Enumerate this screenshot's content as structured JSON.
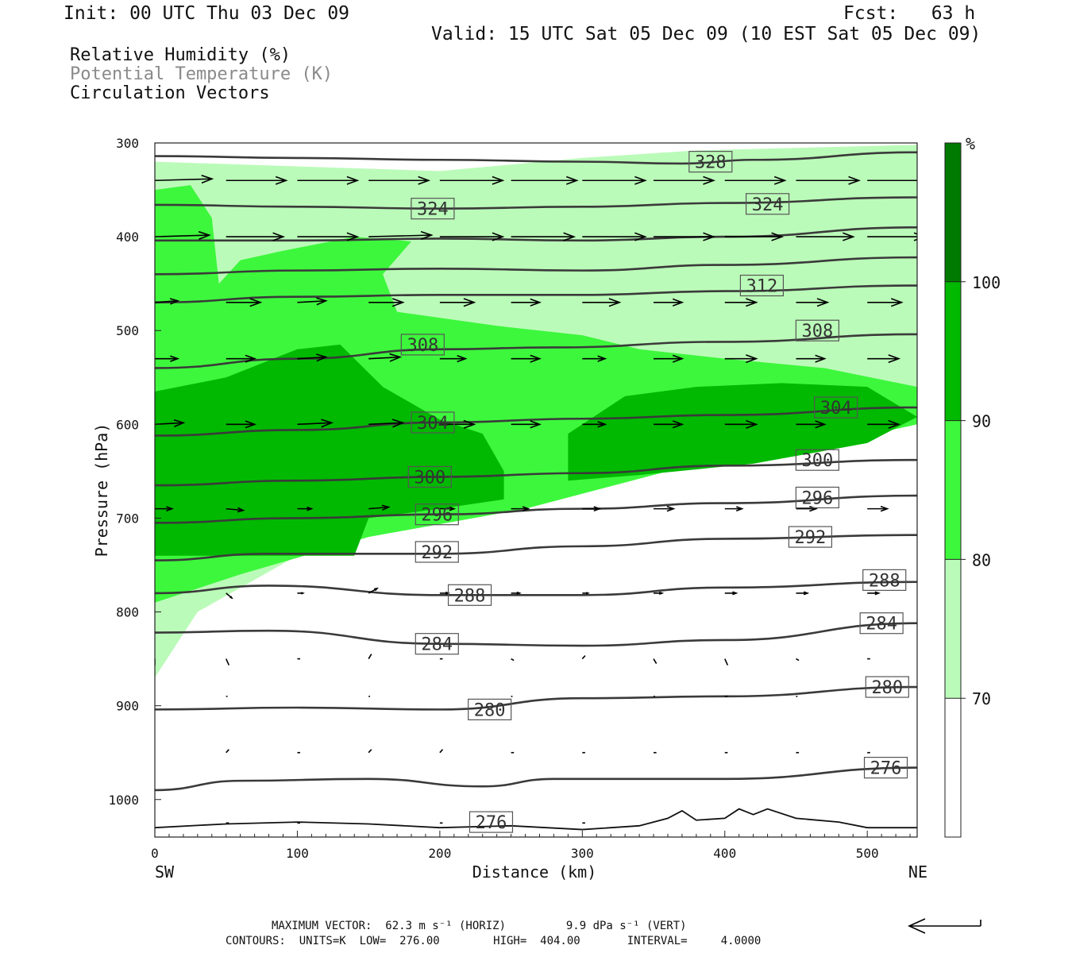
{
  "header": {
    "init": "Init: 00 UTC Thu 03 Dec 09",
    "fcst": "Fcst:   63 h",
    "valid": "Valid: 15 UTC Sat 05 Dec 09 (10 EST Sat 05 Dec 09)"
  },
  "fields": [
    {
      "label": "Relative Humidity (%)",
      "color": "#111111"
    },
    {
      "label": "Potential Temperature (K)",
      "color": "#8a8a8a"
    },
    {
      "label": "Circulation Vectors",
      "color": "#111111"
    }
  ],
  "chart_data": {
    "type": "heatmap",
    "description_kind": "vertical cross-section",
    "xlabel": "Distance (km)",
    "ylabel": "Pressure (hPa)",
    "x_ticks": [
      0,
      100,
      200,
      300,
      400,
      500
    ],
    "y_ticks": [
      300,
      400,
      500,
      600,
      700,
      800,
      900,
      1000
    ],
    "xlim": [
      0,
      535
    ],
    "ylim": [
      300,
      1040
    ],
    "y_inverted": true,
    "x_end_labels": {
      "left": "SW",
      "right": "NE"
    },
    "colorbar": {
      "unit": "%",
      "levels": [
        70,
        80,
        90,
        100
      ],
      "colors": [
        "#ffffff",
        "#bbfbb9",
        "#3df73c",
        "#00b900",
        "#007a00"
      ]
    },
    "theta_contours": [
      {
        "value": 328,
        "label": "328",
        "points": [
          [
            0,
            314
          ],
          [
            100,
            316
          ],
          [
            200,
            318
          ],
          [
            300,
            320
          ],
          [
            370,
            322
          ],
          [
            420,
            318
          ],
          [
            535,
            310
          ]
        ],
        "label_at": [
          390,
          320
        ]
      },
      {
        "value": 324,
        "label": "324",
        "points": [
          [
            0,
            366
          ],
          [
            100,
            368
          ],
          [
            200,
            370
          ],
          [
            300,
            368
          ],
          [
            400,
            364
          ],
          [
            535,
            358
          ]
        ],
        "label_at": [
          195,
          370
        ]
      },
      {
        "value": 324,
        "label": "324",
        "points": [],
        "label_at": [
          430,
          365
        ]
      },
      {
        "value": 320,
        "label": "",
        "points": [
          [
            0,
            404
          ],
          [
            100,
            404
          ],
          [
            200,
            402
          ],
          [
            300,
            404
          ],
          [
            400,
            400
          ],
          [
            535,
            390
          ]
        ],
        "label_at": null
      },
      {
        "value": 316,
        "label": "",
        "points": [
          [
            0,
            440
          ],
          [
            100,
            436
          ],
          [
            200,
            434
          ],
          [
            300,
            436
          ],
          [
            400,
            430
          ],
          [
            535,
            422
          ]
        ],
        "label_at": null
      },
      {
        "value": 312,
        "label": "312",
        "points": [
          [
            0,
            470
          ],
          [
            100,
            464
          ],
          [
            200,
            462
          ],
          [
            300,
            462
          ],
          [
            400,
            458
          ],
          [
            535,
            452
          ]
        ],
        "label_at": [
          426,
          452
        ]
      },
      {
        "value": 308,
        "label": "308",
        "points": [
          [
            0,
            540
          ],
          [
            100,
            530
          ],
          [
            200,
            520
          ],
          [
            280,
            518
          ],
          [
            400,
            512
          ],
          [
            535,
            504
          ]
        ],
        "label_at": [
          188,
          515
        ]
      },
      {
        "value": 308,
        "label": "308",
        "points": [],
        "label_at": [
          465,
          500
        ]
      },
      {
        "value": 304,
        "label": "304",
        "points": [
          [
            0,
            612
          ],
          [
            100,
            606
          ],
          [
            200,
            598
          ],
          [
            300,
            594
          ],
          [
            400,
            590
          ],
          [
            535,
            582
          ]
        ],
        "label_at": [
          195,
          598
        ]
      },
      {
        "value": 304,
        "label": "304",
        "points": [],
        "label_at": [
          478,
          582
        ]
      },
      {
        "value": 300,
        "label": "300",
        "points": [
          [
            0,
            665
          ],
          [
            100,
            660
          ],
          [
            200,
            656
          ],
          [
            300,
            652
          ],
          [
            400,
            644
          ],
          [
            535,
            638
          ]
        ],
        "label_at": [
          193,
          656
        ]
      },
      {
        "value": 300,
        "label": "300",
        "points": [],
        "label_at": [
          465,
          638
        ]
      },
      {
        "value": 296,
        "label": "296",
        "points": [
          [
            0,
            705
          ],
          [
            100,
            700
          ],
          [
            200,
            696
          ],
          [
            300,
            690
          ],
          [
            400,
            684
          ],
          [
            535,
            676
          ]
        ],
        "label_at": [
          198,
          696
        ]
      },
      {
        "value": 296,
        "label": "296",
        "points": [],
        "label_at": [
          465,
          678
        ]
      },
      {
        "value": 292,
        "label": "292",
        "points": [
          [
            0,
            745
          ],
          [
            80,
            738
          ],
          [
            200,
            738
          ],
          [
            300,
            730
          ],
          [
            400,
            722
          ],
          [
            535,
            718
          ]
        ],
        "label_at": [
          198,
          736
        ]
      },
      {
        "value": 292,
        "label": "292",
        "points": [],
        "label_at": [
          460,
          720
        ]
      },
      {
        "value": 288,
        "label": "288",
        "points": [
          [
            0,
            780
          ],
          [
            80,
            772
          ],
          [
            200,
            782
          ],
          [
            300,
            782
          ],
          [
            400,
            774
          ],
          [
            535,
            768
          ]
        ],
        "label_at": [
          221,
          782
        ]
      },
      {
        "value": 288,
        "label": "288",
        "points": [],
        "label_at": [
          512,
          766
        ]
      },
      {
        "value": 284,
        "label": "284",
        "points": [
          [
            0,
            822
          ],
          [
            80,
            820
          ],
          [
            200,
            834
          ],
          [
            300,
            836
          ],
          [
            400,
            830
          ],
          [
            535,
            812
          ]
        ],
        "label_at": [
          198,
          834
        ]
      },
      {
        "value": 284,
        "label": "284",
        "points": [],
        "label_at": [
          510,
          812
        ]
      },
      {
        "value": 280,
        "label": "280",
        "points": [
          [
            0,
            904
          ],
          [
            100,
            902
          ],
          [
            200,
            904
          ],
          [
            300,
            892
          ],
          [
            400,
            890
          ],
          [
            535,
            880
          ]
        ],
        "label_at": [
          235,
          904
        ]
      },
      {
        "value": 280,
        "label": "280",
        "points": [],
        "label_at": [
          514,
          880
        ]
      },
      {
        "value": 276,
        "label": "276",
        "points": [
          [
            0,
            990
          ],
          [
            60,
            980
          ],
          [
            150,
            978
          ],
          [
            230,
            986
          ],
          [
            280,
            978
          ],
          [
            400,
            978
          ],
          [
            535,
            966
          ]
        ],
        "label_at": [
          513,
          966
        ]
      },
      {
        "value": 276,
        "label": "276",
        "points": [],
        "label_at": [
          236,
          1024
        ]
      }
    ],
    "rh_regions": [
      {
        "rh_min": 70,
        "outline": [
          [
            0,
            320
          ],
          [
            200,
            330
          ],
          [
            300,
            316
          ],
          [
            380,
            308
          ],
          [
            535,
            302
          ],
          [
            535,
            592
          ],
          [
            440,
            612
          ],
          [
            360,
            640
          ],
          [
            300,
            664
          ],
          [
            200,
            700
          ],
          [
            100,
            740
          ],
          [
            30,
            800
          ],
          [
            0,
            870
          ]
        ]
      },
      {
        "rh_min": 80,
        "outline": [
          [
            0,
            350
          ],
          [
            25,
            345
          ],
          [
            40,
            380
          ],
          [
            45,
            450
          ],
          [
            60,
            425
          ],
          [
            90,
            415
          ],
          [
            140,
            400
          ],
          [
            180,
            405
          ],
          [
            160,
            440
          ],
          [
            170,
            480
          ],
          [
            240,
            495
          ],
          [
            300,
            505
          ],
          [
            340,
            520
          ],
          [
            400,
            530
          ],
          [
            470,
            540
          ],
          [
            535,
            560
          ],
          [
            535,
            600
          ],
          [
            460,
            625
          ],
          [
            360,
            650
          ],
          [
            260,
            690
          ],
          [
            150,
            720
          ],
          [
            60,
            760
          ],
          [
            0,
            790
          ]
        ]
      },
      {
        "rh_min": 90,
        "outline": [
          [
            0,
            565
          ],
          [
            50,
            550
          ],
          [
            100,
            520
          ],
          [
            130,
            515
          ],
          [
            160,
            560
          ],
          [
            200,
            595
          ],
          [
            230,
            610
          ],
          [
            245,
            650
          ],
          [
            245,
            680
          ],
          [
            200,
            690
          ],
          [
            150,
            700
          ],
          [
            140,
            740
          ],
          [
            0,
            740
          ]
        ]
      },
      {
        "rh_min": 90,
        "outline": [
          [
            290,
            610
          ],
          [
            330,
            570
          ],
          [
            380,
            560
          ],
          [
            440,
            556
          ],
          [
            500,
            560
          ],
          [
            535,
            592
          ],
          [
            500,
            620
          ],
          [
            420,
            642
          ],
          [
            340,
            654
          ],
          [
            290,
            660
          ]
        ]
      }
    ],
    "vectors": [
      {
        "p": 340,
        "x": [
          0,
          50,
          100,
          150,
          200,
          250,
          300,
          350,
          400,
          450,
          500
        ],
        "u": [
          40,
          42,
          42,
          42,
          44,
          46,
          44,
          42,
          42,
          44,
          44
        ],
        "w": [
          -1,
          0,
          0,
          0,
          0,
          0,
          0,
          0,
          0,
          0,
          0
        ]
      },
      {
        "p": 400,
        "x": [
          0,
          50,
          100,
          150,
          200,
          250,
          300,
          350,
          400,
          450,
          500
        ],
        "u": [
          38,
          40,
          42,
          44,
          44,
          44,
          44,
          42,
          40,
          40,
          40
        ],
        "w": [
          -1,
          0,
          0,
          -1,
          0,
          0,
          0,
          0,
          0,
          0,
          0
        ]
      },
      {
        "p": 470,
        "x": [
          0,
          50,
          100,
          150,
          200,
          250,
          300,
          350,
          400,
          450,
          500
        ],
        "u": [
          16,
          24,
          20,
          24,
          24,
          20,
          26,
          20,
          22,
          22,
          24
        ],
        "w": [
          -1,
          0,
          -1,
          0,
          0,
          0,
          0,
          0,
          0,
          0,
          0
        ]
      },
      {
        "p": 530,
        "x": [
          0,
          50,
          100,
          150,
          200,
          250,
          300,
          350,
          400,
          450,
          500
        ],
        "u": [
          16,
          20,
          20,
          22,
          18,
          20,
          16,
          20,
          22,
          20,
          22
        ],
        "w": [
          0,
          0,
          -1,
          -1,
          0,
          0,
          0,
          0,
          0,
          0,
          0
        ]
      },
      {
        "p": 600,
        "x": [
          0,
          50,
          100,
          150,
          200,
          250,
          300,
          350,
          400,
          450,
          500
        ],
        "u": [
          20,
          20,
          24,
          24,
          24,
          20,
          16,
          20,
          22,
          20,
          22
        ],
        "w": [
          -1,
          0,
          -1,
          -1,
          0,
          0,
          0,
          0,
          0,
          0,
          0
        ]
      },
      {
        "p": 690,
        "x": [
          0,
          50,
          100,
          150,
          200,
          250,
          300,
          350,
          400,
          450,
          500
        ],
        "u": [
          12,
          12,
          10,
          14,
          10,
          12,
          12,
          14,
          12,
          14,
          14
        ],
        "w": [
          0,
          1,
          0,
          -1,
          0,
          0,
          0,
          0,
          0,
          0,
          0
        ]
      },
      {
        "p": 780,
        "x": [
          50,
          100,
          150,
          200,
          250,
          300,
          350,
          400,
          450,
          500
        ],
        "u": [
          4,
          4,
          6,
          6,
          6,
          4,
          6,
          8,
          8,
          8
        ],
        "w": [
          3,
          0,
          -3,
          0,
          0,
          0,
          0,
          0,
          0,
          0
        ]
      },
      {
        "p": 850,
        "x": [
          0,
          50,
          100,
          150,
          200,
          250,
          300,
          350,
          400,
          450,
          500
        ],
        "u": [
          0,
          2,
          2,
          2,
          2,
          2,
          2,
          2,
          2,
          2,
          2
        ],
        "w": [
          4,
          4,
          0,
          -3,
          0,
          1,
          -2,
          3,
          4,
          1,
          0
        ]
      },
      {
        "p": 890,
        "x": [
          50,
          150,
          250,
          350,
          400,
          450
        ],
        "u": [
          1,
          1,
          1,
          1,
          2,
          1
        ],
        "w": [
          0,
          0,
          0,
          0,
          0,
          0
        ]
      },
      {
        "p": 950,
        "x": [
          50,
          100,
          150,
          200,
          250,
          300,
          350,
          400,
          450,
          500
        ],
        "u": [
          2,
          2,
          2,
          2,
          2,
          2,
          2,
          2,
          2,
          2
        ],
        "w": [
          -2,
          0,
          -2,
          -2,
          0,
          0,
          0,
          0,
          0,
          0
        ]
      },
      {
        "p": 1025,
        "x": [
          50,
          100,
          200,
          300
        ],
        "u": [
          2,
          2,
          2,
          2
        ],
        "w": [
          0,
          0,
          0,
          0
        ]
      }
    ],
    "terrain_note": "surface ~1025 hPa"
  },
  "footer": {
    "max_vector": "MAXIMUM VECTOR:  62.3 m s⁻¹ (HORIZ)         9.9 dPa s⁻¹ (VERT)",
    "contours": "CONTOURS:  UNITS=K  LOW=  276.00        HIGH=  404.00       INTERVAL=     4.0000"
  }
}
